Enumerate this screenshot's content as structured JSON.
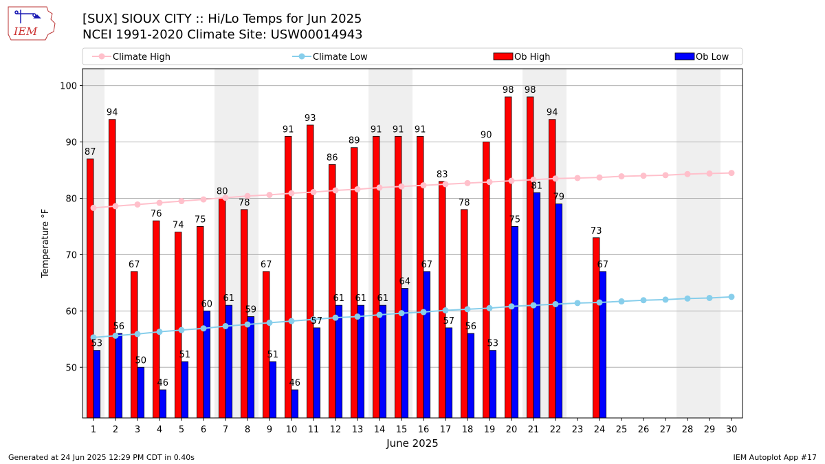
{
  "header": {
    "title_line1": "[SUX] SIOUX CITY :: Hi/Lo Temps for Jun 2025",
    "title_line2": "NCEI 1991-2020 Climate Site: USW00014943",
    "logo_text": "IEM"
  },
  "footer": {
    "generated": "Generated at 24 Jun 2025 12:29 PM CDT in 0.40s",
    "app": "IEM Autoplot App #17"
  },
  "chart_data": {
    "type": "bar",
    "xlabel": "June 2025",
    "ylabel": "Temperature °F",
    "ylim": [
      41,
      103
    ],
    "xlim": [
      0.5,
      30.5
    ],
    "yticks": [
      50,
      60,
      70,
      80,
      90,
      100
    ],
    "grid": "horizontal",
    "legend_placement": "top",
    "shaded_weekend_days": [
      1,
      7,
      8,
      14,
      15,
      21,
      22,
      28,
      29
    ],
    "days": [
      1,
      2,
      3,
      4,
      5,
      6,
      7,
      8,
      9,
      10,
      11,
      12,
      13,
      14,
      15,
      16,
      17,
      18,
      19,
      20,
      21,
      22,
      23,
      24,
      25,
      26,
      27,
      28,
      29,
      30
    ],
    "series": [
      {
        "name": "Climate High",
        "kind": "line",
        "color": "#ffc0cb",
        "values": [
          78.3,
          78.6,
          78.9,
          79.2,
          79.5,
          79.8,
          80.1,
          80.4,
          80.6,
          80.9,
          81.1,
          81.4,
          81.6,
          81.9,
          82.1,
          82.3,
          82.5,
          82.7,
          82.9,
          83.1,
          83.3,
          83.5,
          83.6,
          83.7,
          83.9,
          84.0,
          84.1,
          84.3,
          84.4,
          84.5
        ]
      },
      {
        "name": "Climate Low",
        "kind": "line",
        "color": "#87ceeb",
        "values": [
          55.3,
          55.6,
          55.9,
          56.3,
          56.6,
          56.9,
          57.3,
          57.6,
          57.9,
          58.2,
          58.5,
          58.8,
          59.0,
          59.3,
          59.6,
          59.8,
          60.1,
          60.3,
          60.5,
          60.8,
          61.0,
          61.2,
          61.4,
          61.5,
          61.7,
          61.9,
          62.0,
          62.2,
          62.3,
          62.5
        ]
      },
      {
        "name": "Ob High",
        "kind": "bar",
        "color": "#ff0000",
        "values": [
          87,
          94,
          67,
          76,
          74,
          75,
          80,
          78,
          67,
          91,
          93,
          86,
          89,
          91,
          91,
          91,
          83,
          78,
          90,
          98,
          98,
          94,
          null,
          73,
          null,
          null,
          null,
          null,
          null,
          null
        ]
      },
      {
        "name": "Ob Low",
        "kind": "bar",
        "color": "#0000ff",
        "values": [
          53,
          56,
          50,
          46,
          51,
          60,
          61,
          59,
          51,
          46,
          57,
          61,
          61,
          61,
          64,
          67,
          57,
          56,
          53,
          75,
          81,
          79,
          null,
          67,
          null,
          null,
          null,
          null,
          null,
          null
        ]
      }
    ]
  }
}
